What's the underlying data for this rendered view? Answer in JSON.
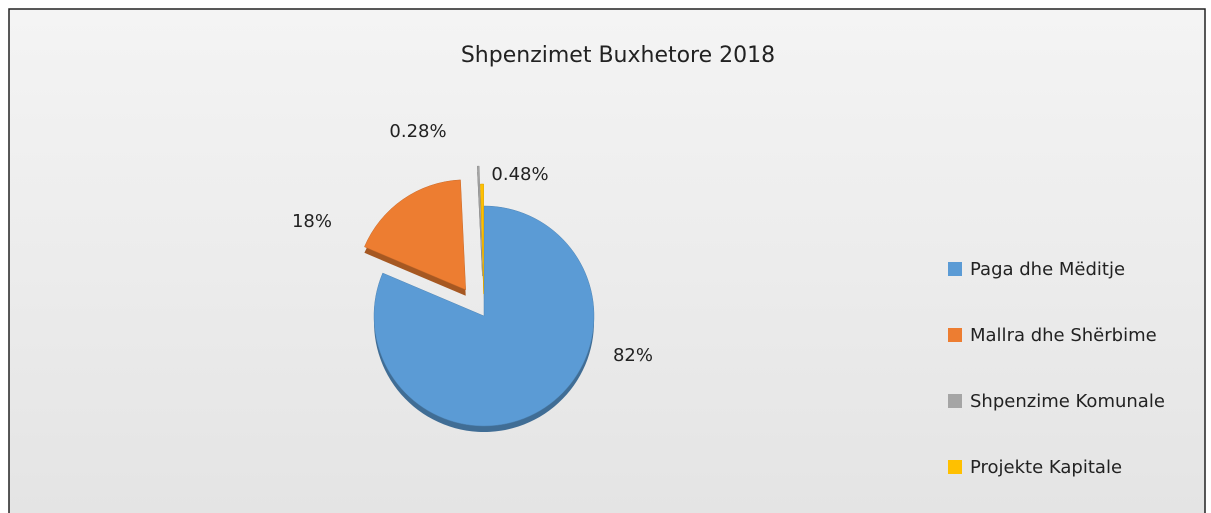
{
  "chart_data": {
    "type": "pie",
    "title": "Shpenzimet Buxhetore 2018",
    "categories": [
      "Paga dhe Mëditje",
      "Mallra dhe Shërbime",
      "Shpenzime Komunale",
      "Projekte Kapitale"
    ],
    "values": [
      82,
      18,
      0.28,
      0.48
    ],
    "value_labels": [
      "82%",
      "18%",
      "0.28%",
      "0.48%"
    ],
    "colors": [
      "#5b9bd5",
      "#ed7d31",
      "#a5a5a5",
      "#ffc000"
    ],
    "legend": "right"
  }
}
